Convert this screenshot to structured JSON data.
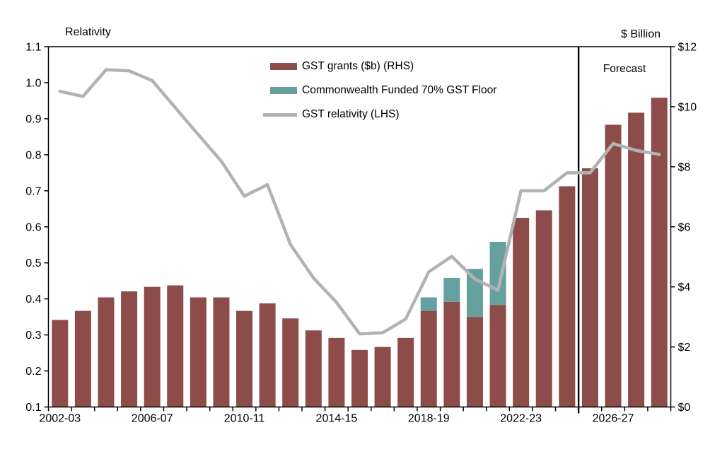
{
  "chart_data": {
    "type": "bar+line",
    "categories": [
      "2002-03",
      "2003-04",
      "2004-05",
      "2005-06",
      "2006-07",
      "2007-08",
      "2008-09",
      "2009-10",
      "2010-11",
      "2011-12",
      "2012-13",
      "2013-14",
      "2014-15",
      "2015-16",
      "2016-17",
      "2017-18",
      "2018-19",
      "2019-20",
      "2020-21",
      "2021-22",
      "2022-23",
      "2023-24",
      "2024-25",
      "2025-26",
      "2026-27",
      "2027-28",
      "2028-29"
    ],
    "series": [
      {
        "name": "GST grants ($b) (RHS)",
        "type": "bar",
        "axis": "right",
        "color": "#8c4c49",
        "values": [
          2.9,
          3.2,
          3.65,
          3.85,
          4.0,
          4.05,
          3.65,
          3.65,
          3.2,
          3.45,
          2.95,
          2.55,
          2.3,
          1.9,
          2.0,
          2.3,
          3.2,
          3.5,
          3.0,
          3.4,
          6.3,
          6.55,
          7.35,
          7.95,
          9.4,
          9.8,
          10.3
        ]
      },
      {
        "name": "Commonwealth Funded 70% GST Floor",
        "type": "bar",
        "stacked": true,
        "axis": "right",
        "color": "#66a09e",
        "values": [
          0,
          0,
          0,
          0,
          0,
          0,
          0,
          0,
          0,
          0,
          0,
          0,
          0,
          0,
          0,
          0,
          0.45,
          0.8,
          1.6,
          2.1,
          0,
          0,
          0,
          0,
          0,
          0,
          0
        ]
      },
      {
        "name": "GST relativity (LHS)",
        "type": "line",
        "axis": "left",
        "color": "#b2b2b2",
        "values": [
          0.976,
          0.962,
          1.036,
          1.033,
          1.006,
          0.931,
          0.856,
          0.782,
          0.685,
          0.717,
          0.551,
          0.458,
          0.39,
          0.303,
          0.306,
          0.344,
          0.475,
          0.518,
          0.455,
          0.424,
          0.7,
          0.7,
          0.75,
          0.75,
          0.831,
          0.812,
          0.801
        ]
      }
    ],
    "left_axis": {
      "label": "Relativity",
      "min": 0.1,
      "max": 1.1,
      "tick_step": 0.1,
      "tick_labels": [
        "1.1",
        "1.0",
        "0.9",
        "0.8",
        "0.7",
        "0.6",
        "0.5",
        "0.4",
        "0.3",
        "0.2",
        "0.1"
      ]
    },
    "right_axis": {
      "label": "$ Billion",
      "min": 0,
      "max": 12,
      "tick_step": 2,
      "tick_labels": [
        "$12",
        "$10",
        "$8",
        "$6",
        "$4",
        "$2",
        "$0"
      ]
    },
    "x_axis": {
      "labels": [
        "2002-03",
        "2006-07",
        "2010-11",
        "2014-15",
        "2018-19",
        "2022-23",
        "2026-27"
      ],
      "label_slot_indices": [
        0,
        4,
        8,
        12,
        16,
        20,
        24
      ]
    },
    "forecast": {
      "label": "Forecast",
      "divider_boundary_index": 23
    },
    "grid": "off",
    "legend_position": "top-center-inside"
  }
}
